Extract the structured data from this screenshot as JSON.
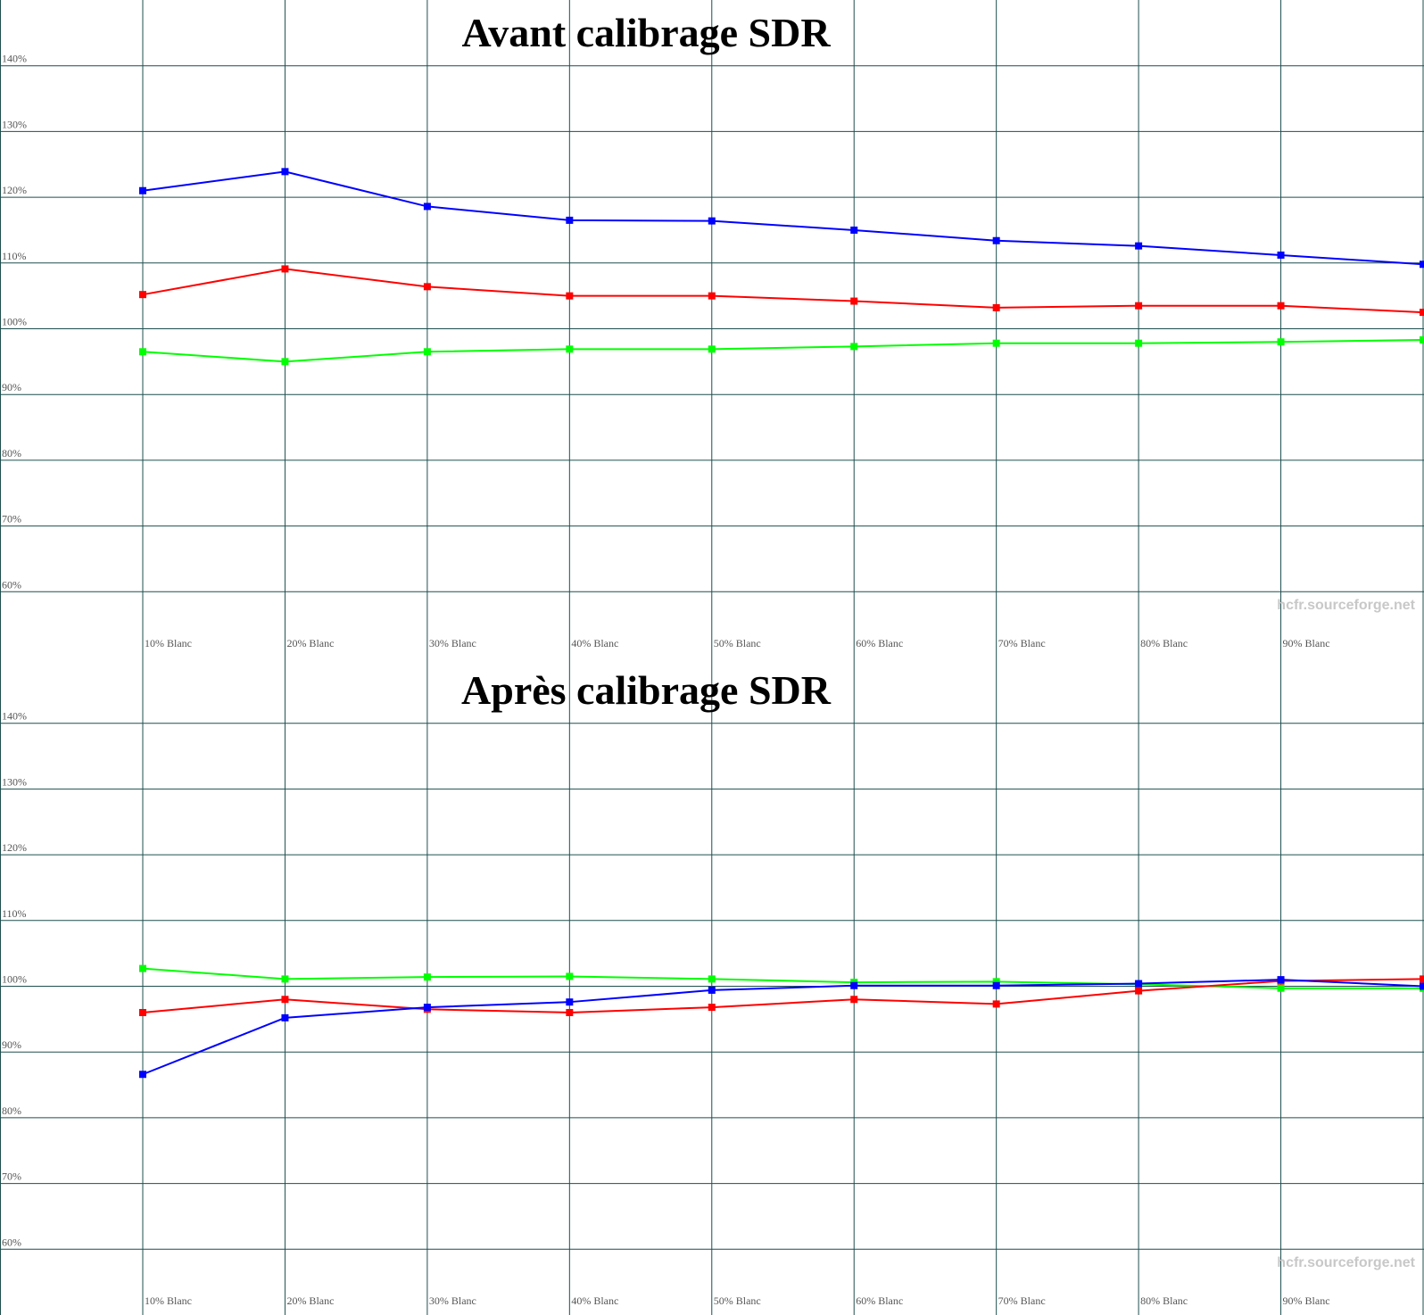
{
  "chart_data": [
    {
      "type": "line",
      "title": "Avant calibrage SDR",
      "watermark": "hcfr.sourceforge.net",
      "categories": [
        "10% Blanc",
        "20% Blanc",
        "30% Blanc",
        "40% Blanc",
        "50% Blanc",
        "60% Blanc",
        "70% Blanc",
        "80% Blanc",
        "90% Blanc",
        null
      ],
      "series": [
        {
          "color": "#0000ff",
          "values": [
            121.0,
            123.9,
            118.6,
            116.5,
            116.4,
            115.0,
            113.4,
            112.6,
            111.2,
            109.8
          ]
        },
        {
          "color": "#ff0000",
          "values": [
            105.2,
            109.1,
            106.4,
            105.0,
            105.0,
            104.2,
            103.2,
            103.5,
            103.5,
            102.5
          ]
        },
        {
          "color": "#00ff00",
          "values": [
            96.5,
            95.0,
            96.5,
            96.9,
            96.9,
            97.3,
            97.8,
            97.8,
            98.0,
            98.3
          ]
        }
      ],
      "ylim": [
        50,
        150
      ],
      "yticks": [
        {
          "value": 60,
          "label": "60%"
        },
        {
          "value": 70,
          "label": "70%"
        },
        {
          "value": 80,
          "label": "80%"
        },
        {
          "value": 90,
          "label": "90%"
        },
        {
          "value": 100,
          "label": "100%"
        },
        {
          "value": 110,
          "label": "110%"
        },
        {
          "value": 120,
          "label": "120%"
        },
        {
          "value": 130,
          "label": "130%"
        },
        {
          "value": 140,
          "label": "140%"
        }
      ],
      "reference_line": 100,
      "grid": true
    },
    {
      "type": "line",
      "title": "Après calibrage SDR",
      "watermark": "hcfr.sourceforge.net",
      "categories": [
        "10% Blanc",
        "20% Blanc",
        "30% Blanc",
        "40% Blanc",
        "50% Blanc",
        "60% Blanc",
        "70% Blanc",
        "80% Blanc",
        "90% Blanc",
        null
      ],
      "series": [
        {
          "color": "#00ff00",
          "values": [
            102.7,
            101.1,
            101.4,
            101.5,
            101.1,
            100.6,
            100.7,
            100.3,
            99.7,
            99.7
          ]
        },
        {
          "color": "#ff0000",
          "values": [
            96.0,
            98.0,
            96.5,
            96.0,
            96.8,
            98.0,
            97.3,
            99.3,
            100.8,
            101.1
          ]
        },
        {
          "color": "#0000ff",
          "values": [
            86.6,
            95.2,
            96.8,
            97.6,
            99.4,
            100.1,
            100.1,
            100.4,
            101.0,
            100.0
          ]
        }
      ],
      "ylim": [
        50,
        150
      ],
      "yticks": [
        {
          "value": 60,
          "label": "60%"
        },
        {
          "value": 70,
          "label": "70%"
        },
        {
          "value": 80,
          "label": "80%"
        },
        {
          "value": 90,
          "label": "90%"
        },
        {
          "value": 100,
          "label": "100%"
        },
        {
          "value": 110,
          "label": "110%"
        },
        {
          "value": 120,
          "label": "120%"
        },
        {
          "value": 130,
          "label": "130%"
        },
        {
          "value": 140,
          "label": "140%"
        }
      ],
      "reference_line": 100,
      "grid": true
    }
  ]
}
